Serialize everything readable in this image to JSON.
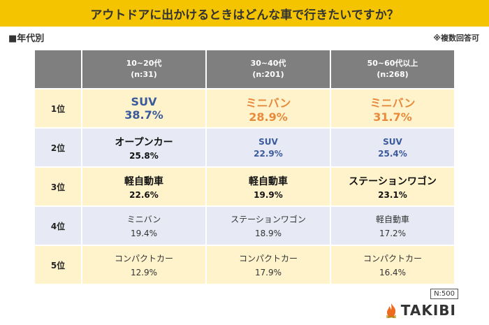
{
  "title": "アウトドアに出かけるときはどんな車で行きたいですか？",
  "subtitle_left": "■年代別",
  "subtitle_right": "※複数回答可",
  "chart_data": {
    "type": "table",
    "columns": [
      {
        "label": "10~20代",
        "n": "(n:31)"
      },
      {
        "label": "30~40代",
        "n": "(n:201)"
      },
      {
        "label": "50~60代以上",
        "n": "(n:268)"
      }
    ],
    "rows": [
      {
        "rank": "1位",
        "cells": [
          {
            "name": "SUV",
            "pct": "38.7%"
          },
          {
            "name": "ミニバン",
            "pct": "28.9%"
          },
          {
            "name": "ミニバン",
            "pct": "31.7%"
          }
        ]
      },
      {
        "rank": "2位",
        "cells": [
          {
            "name": "オープンカー",
            "pct": "25.8%"
          },
          {
            "name": "SUV",
            "pct": "22.9%"
          },
          {
            "name": "SUV",
            "pct": "25.4%"
          }
        ]
      },
      {
        "rank": "3位",
        "cells": [
          {
            "name": "軽自動車",
            "pct": "22.6%"
          },
          {
            "name": "軽自動車",
            "pct": "19.9%"
          },
          {
            "name": "ステーションワゴン",
            "pct": "23.1%"
          }
        ]
      },
      {
        "rank": "4位",
        "cells": [
          {
            "name": "ミニバン",
            "pct": "19.4%"
          },
          {
            "name": "ステーションワゴン",
            "pct": "18.9%"
          },
          {
            "name": "軽自動車",
            "pct": "17.2%"
          }
        ]
      },
      {
        "rank": "5位",
        "cells": [
          {
            "name": "コンパクトカー",
            "pct": "12.9%"
          },
          {
            "name": "コンパクトカー",
            "pct": "17.9%"
          },
          {
            "name": "コンパクトカー",
            "pct": "16.4%"
          }
        ]
      }
    ]
  },
  "footer": {
    "n_total": "N:500",
    "brand": "TAKIBI",
    "brand_icon": "flame-icon"
  },
  "colors": {
    "title_bar": "#f5c400",
    "header": "#7f7f7f",
    "row_yellow": "#fff3cc",
    "row_blue": "#e7eaf4",
    "blue_text": "#3a5a9c",
    "orange_text": "#e88a3c",
    "flame": "#ee6a1f"
  }
}
